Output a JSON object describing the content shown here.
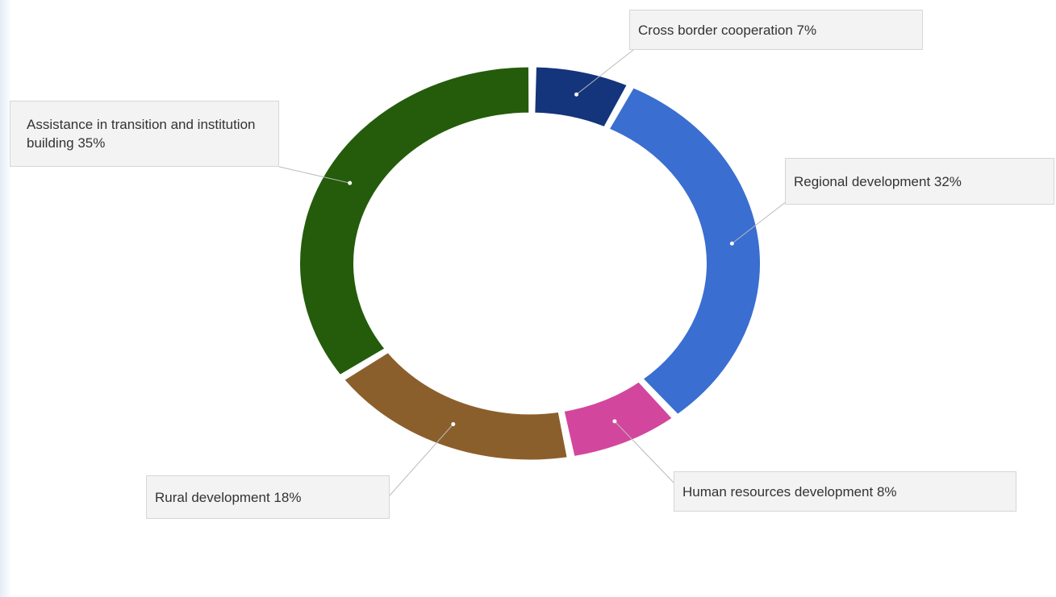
{
  "chart_data": {
    "type": "pie",
    "variant": "donut",
    "title": "",
    "legend": "none",
    "slices": [
      {
        "label": "Cross border cooperation",
        "value": 7,
        "color": "#14347c",
        "callout": "Cross border cooperation 7%"
      },
      {
        "label": "Regional development",
        "value": 32,
        "color": "#3a6ed0",
        "callout": "Regional development 32%"
      },
      {
        "label": "Human resources development",
        "value": 8,
        "color": "#d2479d",
        "callout": "Human resources development 8%"
      },
      {
        "label": "Rural development",
        "value": 18,
        "color": "#8b5f2c",
        "callout": "Rural development 18%"
      },
      {
        "label": "Assistance in transition and institution building",
        "value": 35,
        "color": "#245c0b",
        "callout": "Assistance in transition and institution building 35%"
      }
    ]
  }
}
